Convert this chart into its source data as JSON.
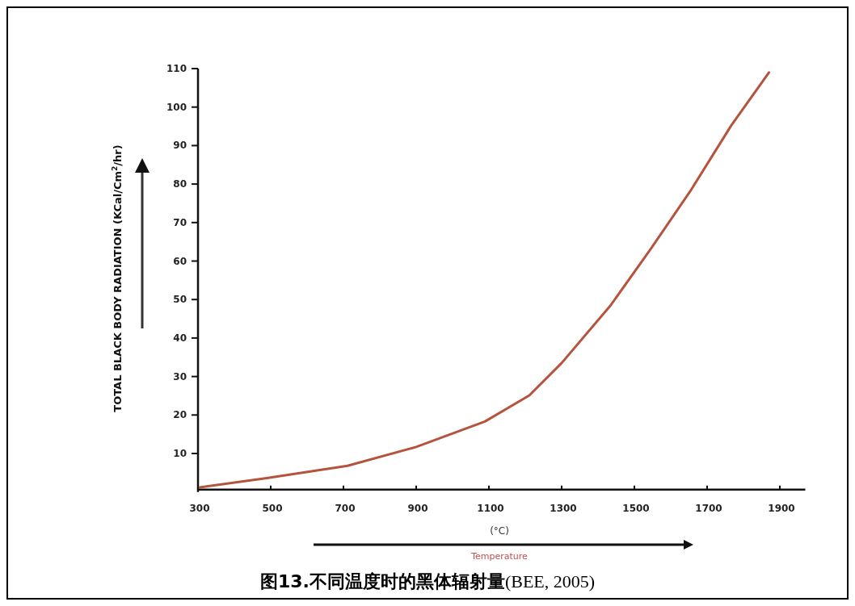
{
  "chart_data": {
    "type": "line",
    "title": "**图13.不同温度时的黑体辐射量**(BEE, 2005)",
    "xlabel": "(°C)",
    "ylabel": "TOTAL BLACK BODY RADIATION (KCal/Cm$^{2}$/hr)",
    "annotations": [
      "Temperature"
    ],
    "x": [
      305,
      489,
      711,
      900,
      1089,
      1211,
      1300,
      1433,
      1544,
      1656,
      1767,
      1870
    ],
    "series": [
      {
        "color": "#b5533c",
        "values": [
          1.2,
          3.6,
          6.8,
          11.7,
          18.3,
          25.1,
          33.5,
          48.3,
          63,
          78.5,
          95.3,
          109
        ]
      }
    ],
    "xlim": [
      300,
      1970
    ],
    "ylim": [
      0,
      110
    ],
    "xticks": [
      300,
      500,
      700,
      900,
      1100,
      1300,
      1500,
      1700,
      1900
    ],
    "yticks": [
      10,
      20,
      30,
      40,
      50,
      60,
      70,
      80,
      90,
      100,
      110
    ],
    "grid": false,
    "marker": "none",
    "line_style": "solid"
  }
}
